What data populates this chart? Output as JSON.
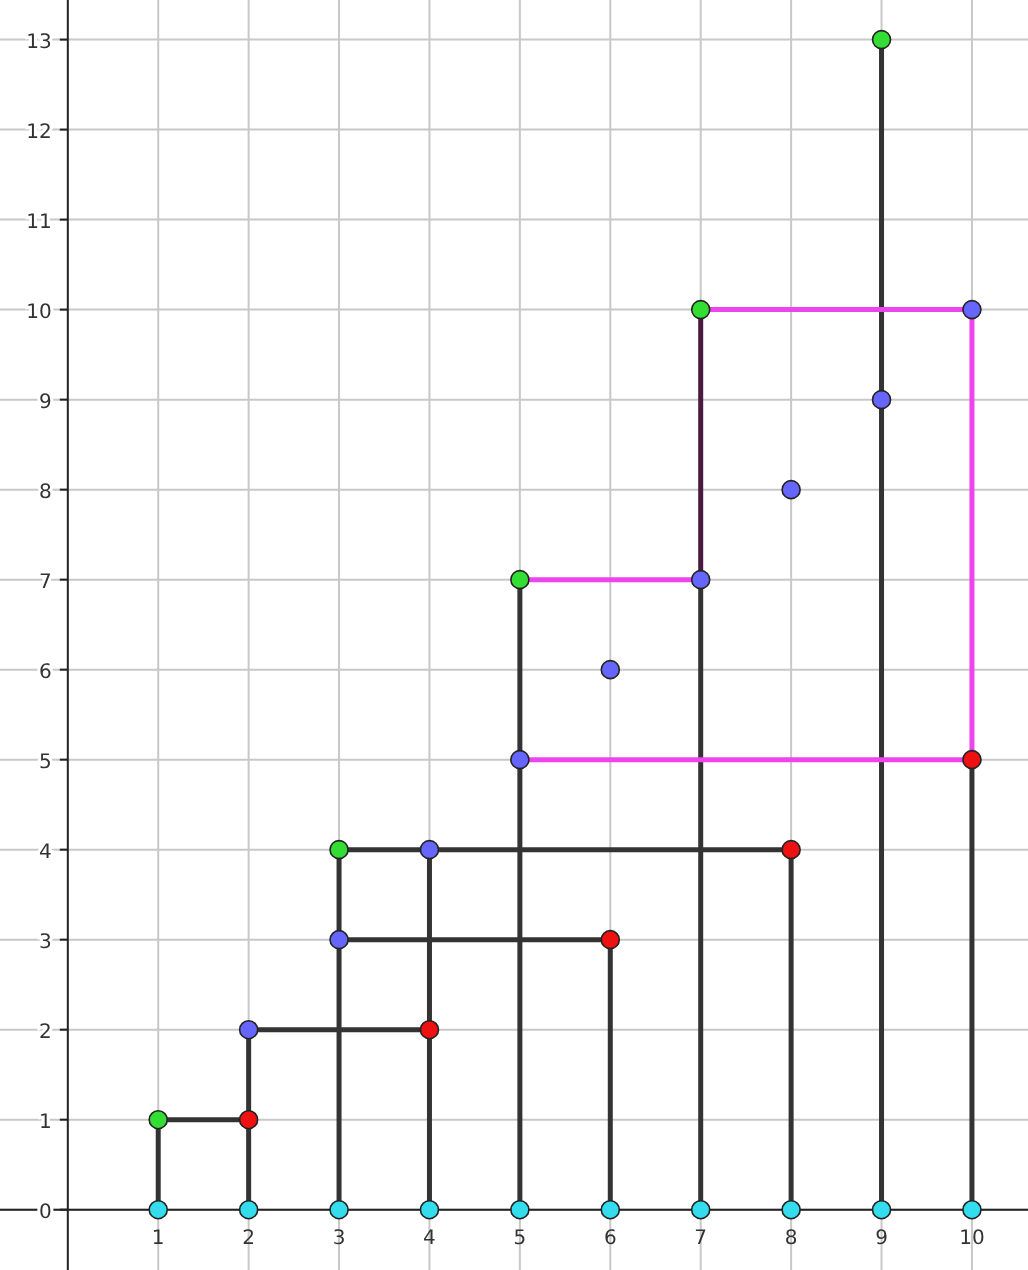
{
  "chart_data": {
    "type": "scatter",
    "xlim": [
      -0.75,
      10.62
    ],
    "ylim": [
      -0.67,
      13.44
    ],
    "xticks": [
      1,
      2,
      3,
      4,
      5,
      6,
      7,
      8,
      9,
      10
    ],
    "yticks": [
      0,
      1,
      2,
      3,
      4,
      5,
      6,
      7,
      8,
      9,
      10,
      11,
      12,
      13
    ],
    "grid": true,
    "series": [
      {
        "type": "line",
        "color": "#333333",
        "x": [
          1,
          1
        ],
        "values": [
          0,
          1
        ]
      },
      {
        "type": "line",
        "color": "#333333",
        "x": [
          2,
          2
        ],
        "values": [
          0,
          2
        ]
      },
      {
        "type": "line",
        "color": "#333333",
        "x": [
          3,
          3
        ],
        "values": [
          0,
          4
        ]
      },
      {
        "type": "line",
        "color": "#333333",
        "x": [
          4,
          4
        ],
        "values": [
          0,
          4
        ]
      },
      {
        "type": "line",
        "color": "#333333",
        "x": [
          5,
          5
        ],
        "values": [
          0,
          7
        ]
      },
      {
        "type": "line",
        "color": "#333333",
        "x": [
          6,
          6
        ],
        "values": [
          0,
          3
        ]
      },
      {
        "type": "line",
        "color": "#333333",
        "x": [
          7,
          7
        ],
        "values": [
          0,
          7
        ]
      },
      {
        "type": "line",
        "color": "#4a1a40",
        "x": [
          7,
          7
        ],
        "values": [
          7,
          10
        ]
      },
      {
        "type": "line",
        "color": "#333333",
        "x": [
          8,
          8
        ],
        "values": [
          0,
          4
        ]
      },
      {
        "type": "line",
        "color": "#333333",
        "x": [
          9,
          9
        ],
        "values": [
          0,
          13
        ]
      },
      {
        "type": "line",
        "color": "#333333",
        "x": [
          10,
          10
        ],
        "values": [
          0,
          5
        ]
      },
      {
        "type": "line",
        "color": "#333333",
        "x": [
          1,
          2
        ],
        "values": [
          1,
          1
        ]
      },
      {
        "type": "line",
        "color": "#333333",
        "x": [
          2,
          4
        ],
        "values": [
          2,
          2
        ]
      },
      {
        "type": "line",
        "color": "#333333",
        "x": [
          3,
          6
        ],
        "values": [
          3,
          3
        ]
      },
      {
        "type": "line",
        "color": "#333333",
        "x": [
          3,
          8
        ],
        "values": [
          4,
          4
        ]
      },
      {
        "type": "line",
        "color": "#ee44ee",
        "x": [
          5,
          10
        ],
        "values": [
          5,
          5
        ]
      },
      {
        "type": "line",
        "color": "#ee44ee",
        "x": [
          5,
          7
        ],
        "values": [
          7,
          7
        ]
      },
      {
        "type": "line",
        "color": "#ee44ee",
        "x": [
          7,
          10
        ],
        "values": [
          10,
          10
        ]
      },
      {
        "type": "line",
        "color": "#ee44ee",
        "x": [
          10,
          10
        ],
        "values": [
          5,
          10
        ]
      },
      {
        "color": "#33ddee",
        "x": [
          1,
          2,
          3,
          4,
          5,
          6,
          7,
          8,
          9,
          10
        ],
        "values": [
          0,
          0,
          0,
          0,
          0,
          0,
          0,
          0,
          0,
          0
        ]
      },
      {
        "color": "#33dd33",
        "x": [
          1,
          3,
          5,
          7,
          9
        ],
        "values": [
          1,
          4,
          7,
          10,
          13
        ]
      },
      {
        "color": "#ee1111",
        "x": [
          2,
          4,
          6,
          8,
          10
        ],
        "values": [
          1,
          2,
          3,
          4,
          5
        ]
      },
      {
        "color": "#6666ff",
        "x": [
          2,
          3,
          4,
          5,
          6,
          7,
          8,
          9,
          10
        ],
        "values": [
          2,
          3,
          4,
          5,
          6,
          7,
          8,
          9,
          10
        ]
      }
    ]
  }
}
